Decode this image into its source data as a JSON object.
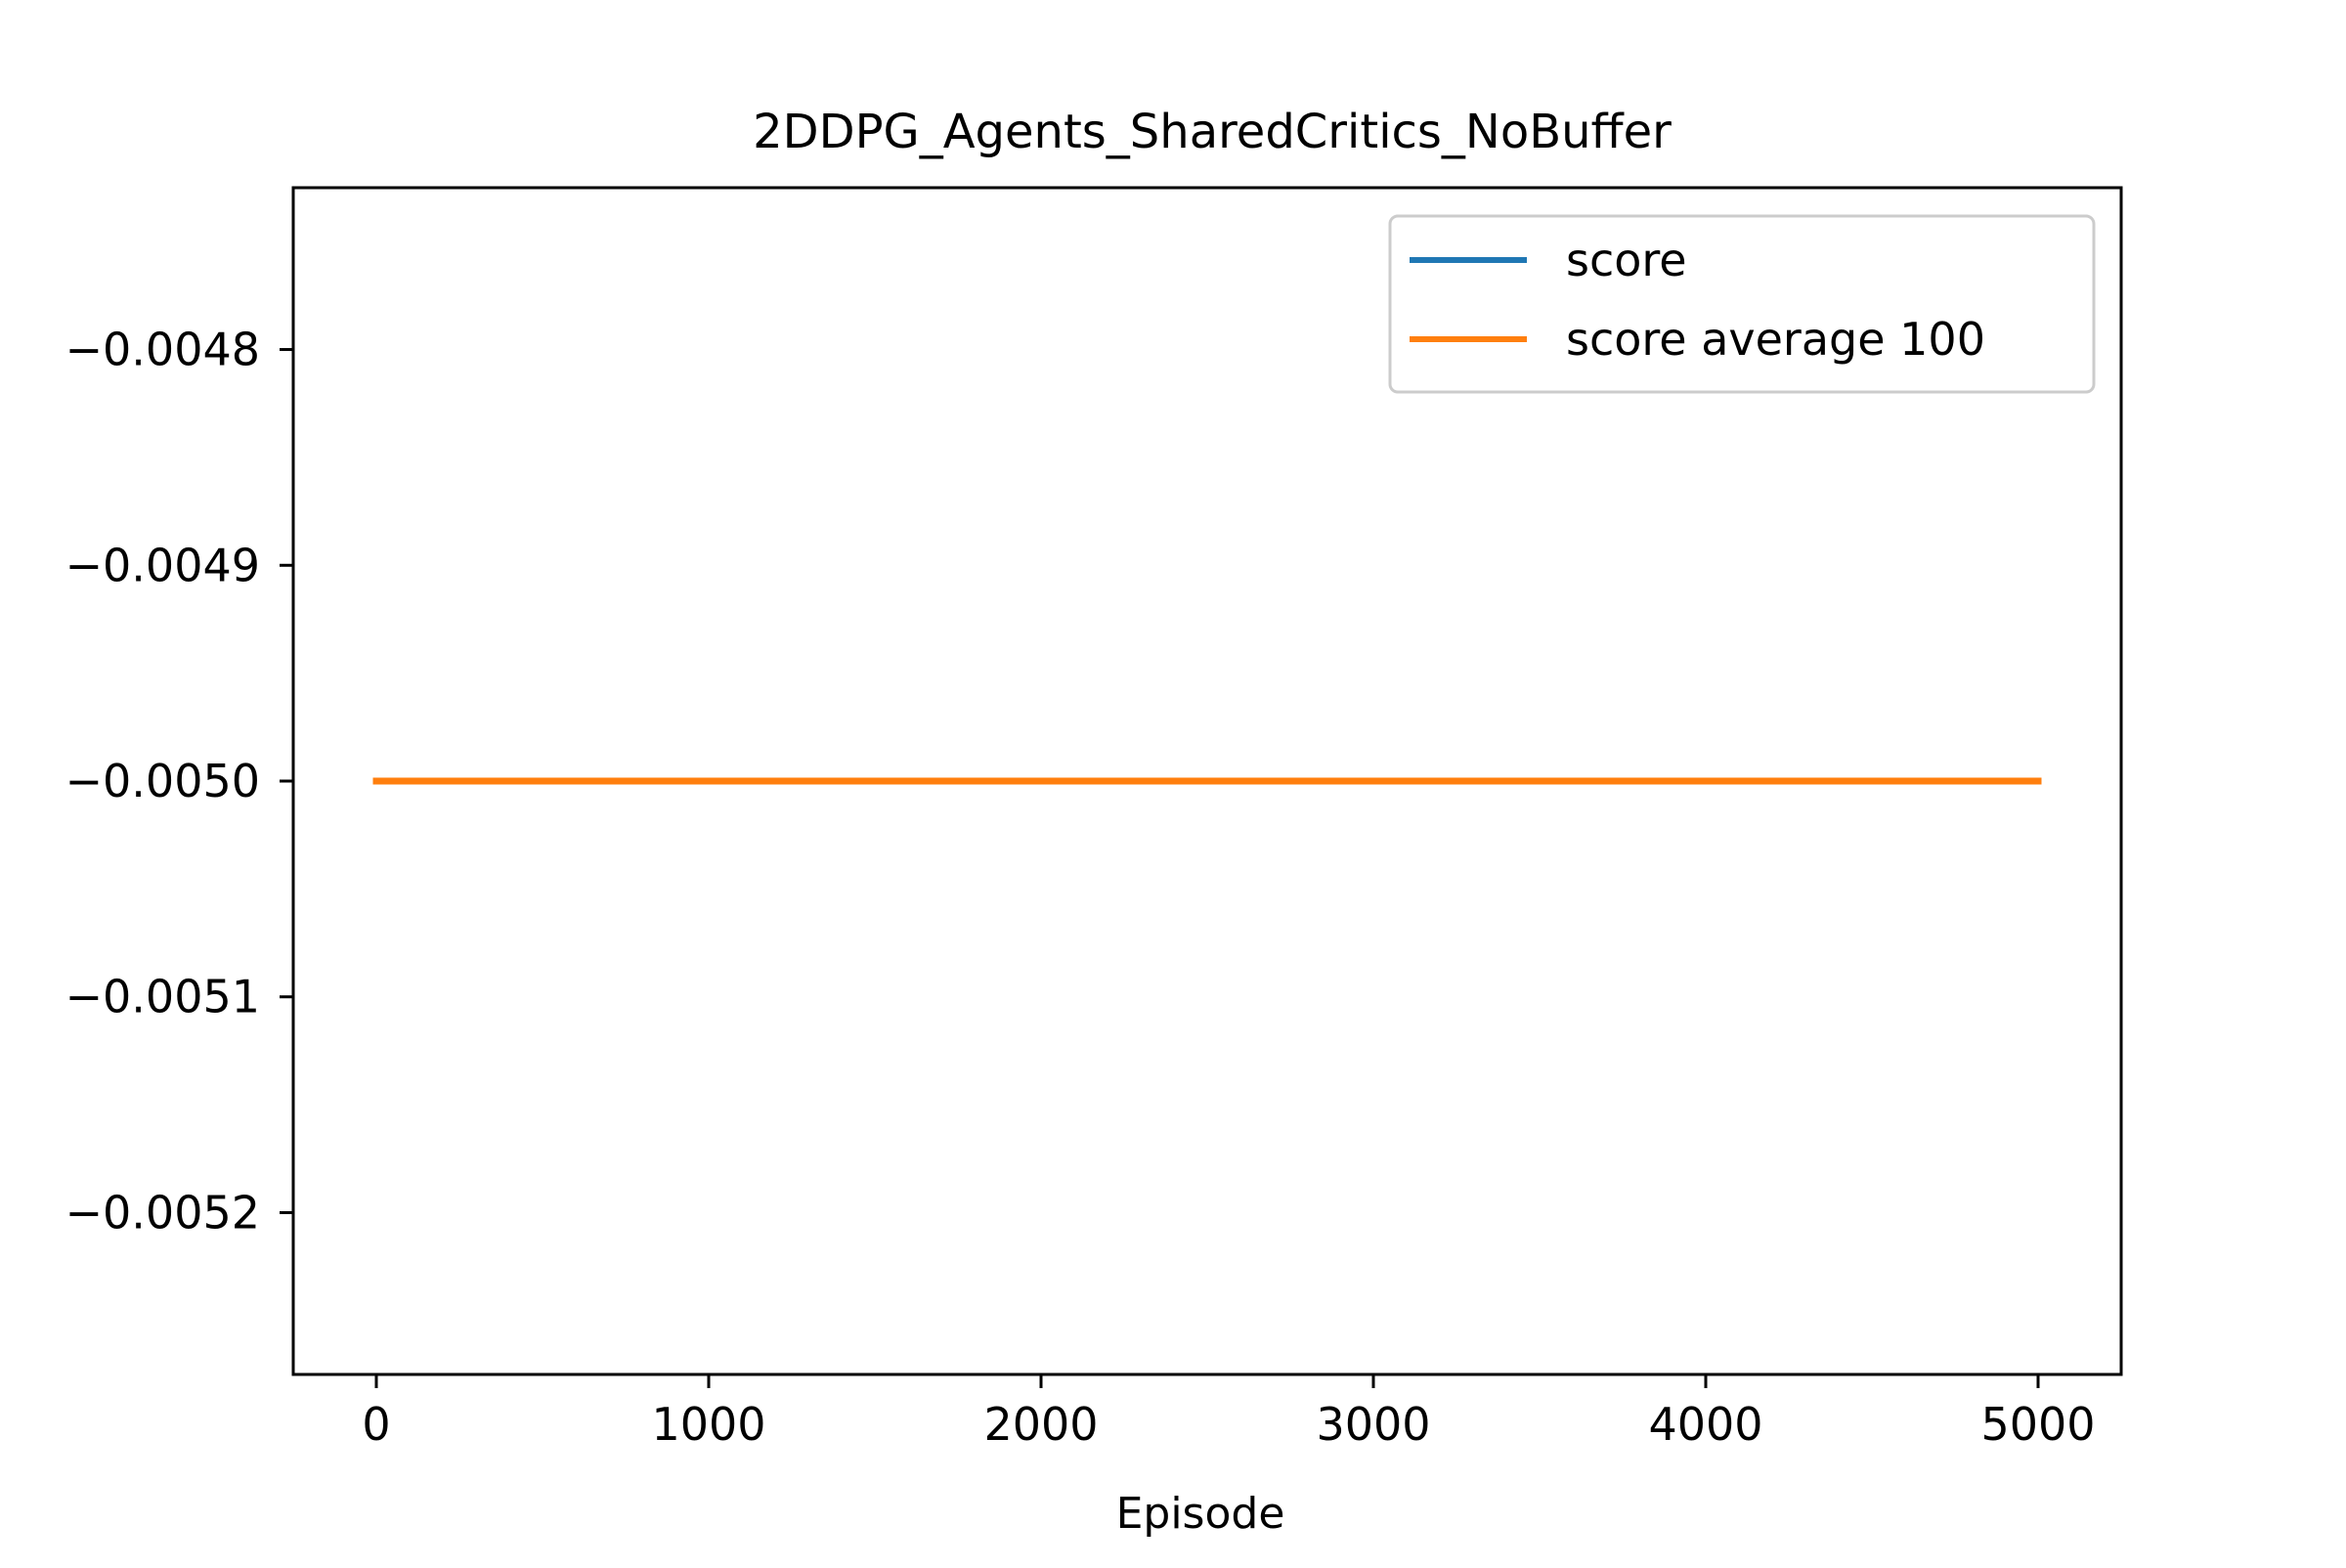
{
  "chart_data": {
    "type": "line",
    "title": "2DDPG_Agents_SharedCritics_NoBuffer",
    "xlabel": "Episode",
    "ylabel": "",
    "xlim": [
      -250,
      5250
    ],
    "ylim": [
      -0.005275,
      -0.004725
    ],
    "xticks": [
      0,
      1000,
      2000,
      3000,
      4000,
      5000
    ],
    "xtick_labels": [
      "0",
      "1000",
      "2000",
      "3000",
      "4000",
      "5000"
    ],
    "yticks": [
      -0.0048,
      -0.0049,
      -0.005,
      -0.0051,
      -0.0052
    ],
    "ytick_labels": [
      "−0.0048",
      "−0.0049",
      "−0.0050",
      "−0.0051",
      "−0.0052"
    ],
    "grid": false,
    "legend_position": "top-right",
    "series": [
      {
        "name": "score",
        "color": "#1f77b4",
        "x": [
          0,
          5000
        ],
        "y": [
          -0.005,
          -0.005
        ]
      },
      {
        "name": "score average 100",
        "color": "#ff7f0e",
        "x": [
          0,
          5000
        ],
        "y": [
          -0.005,
          -0.005
        ]
      }
    ]
  }
}
